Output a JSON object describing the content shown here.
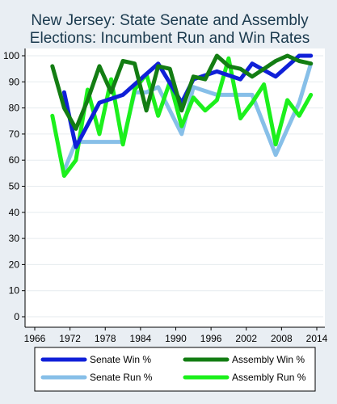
{
  "chart_data": {
    "type": "line",
    "title_lines": [
      "New Jersey: State Senate and Assembly",
      "Elections: Incumbent Run and Win Rates"
    ],
    "xlabel": "",
    "ylabel": "",
    "xlim": [
      1966,
      2014
    ],
    "ylim": [
      0,
      100
    ],
    "x_ticks": [
      1966,
      1972,
      1978,
      1984,
      1990,
      1996,
      2002,
      2008,
      2014
    ],
    "y_ticks": [
      0,
      10,
      20,
      30,
      40,
      50,
      60,
      70,
      80,
      90,
      100
    ],
    "grid": "horizontal",
    "legend_position": "bottom",
    "series": [
      {
        "name": "Senate Run %",
        "color": "#87bfe8",
        "x": [
          1971,
          1973,
          1977,
          1981,
          1983,
          1985,
          1987,
          1991,
          1993,
          1997,
          2001,
          2003,
          2007,
          2011,
          2013
        ],
        "y": [
          56,
          67,
          67,
          67,
          86,
          86,
          88,
          70,
          88,
          85,
          85,
          85,
          62,
          82,
          97
        ]
      },
      {
        "name": "Assembly Run %",
        "color": "#1cf01c",
        "x": [
          1969,
          1971,
          1973,
          1975,
          1977,
          1979,
          1981,
          1983,
          1985,
          1987,
          1989,
          1991,
          1993,
          1995,
          1997,
          1999,
          2001,
          2003,
          2005,
          2007,
          2009,
          2011,
          2013
        ],
        "y": [
          77,
          54,
          60,
          87,
          70,
          91,
          66,
          87,
          93,
          77,
          90,
          73,
          84,
          79,
          83,
          99,
          76,
          82,
          89,
          66,
          83,
          77,
          85
        ]
      },
      {
        "name": "Senate Win %",
        "color": "#1020d8",
        "x": [
          1971,
          1973,
          1977,
          1981,
          1983,
          1985,
          1987,
          1991,
          1993,
          1997,
          2001,
          2003,
          2007,
          2011,
          2013
        ],
        "y": [
          86,
          65,
          82,
          85,
          89,
          93,
          97,
          82,
          91,
          94,
          91,
          97,
          92,
          100,
          100
        ]
      },
      {
        "name": "Assembly Win %",
        "color": "#137d13",
        "x": [
          1969,
          1971,
          1973,
          1975,
          1977,
          1979,
          1981,
          1983,
          1985,
          1987,
          1989,
          1991,
          1993,
          1995,
          1997,
          1999,
          2001,
          2003,
          2005,
          2007,
          2009,
          2011,
          2013
        ],
        "y": [
          96,
          80,
          72,
          83,
          96,
          86,
          98,
          97,
          79,
          96,
          95,
          79,
          92,
          91,
          100,
          96,
          95,
          92,
          95,
          98,
          100,
          98,
          97
        ]
      }
    ],
    "legend": [
      {
        "label": "Senate Win %",
        "color": "#1020d8"
      },
      {
        "label": "Assembly Win %",
        "color": "#137d13"
      },
      {
        "label": "Senate Run %",
        "color": "#87bfe8"
      },
      {
        "label": "Assembly Run %",
        "color": "#1cf01c"
      }
    ]
  }
}
